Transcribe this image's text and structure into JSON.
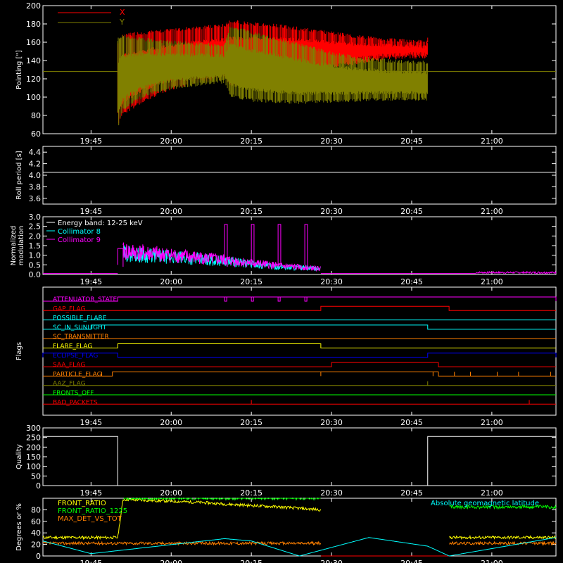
{
  "time_axis": {
    "ticks": [
      "19:45",
      "20:00",
      "20:15",
      "20:30",
      "20:45",
      "21:00"
    ]
  },
  "chart_data": [
    {
      "type": "line",
      "id": "pointing",
      "ylabel": "Pointing [\"]",
      "ylim": [
        60,
        200
      ],
      "yticks": [
        60,
        80,
        100,
        120,
        140,
        160,
        180,
        200
      ],
      "legend": [
        {
          "name": "X",
          "color": "#ff0000"
        },
        {
          "name": "Y",
          "color": "#808000"
        }
      ],
      "baseline": 128,
      "series": [
        {
          "name": "X",
          "color": "#ff0000",
          "envelope": {
            "t": [
              "19:50",
              "19:51",
              "19:55",
              "20:00",
              "20:05",
              "20:10",
              "20:11",
              "20:15",
              "20:20",
              "20:25",
              "20:30",
              "20:35",
              "20:40",
              "20:45",
              "20:48"
            ],
            "upper": [
              160,
              170,
              172,
              175,
              178,
              180,
              185,
              182,
              180,
              176,
              172,
              168,
              165,
              163,
              162
            ],
            "lower": [
              68,
              80,
              95,
              108,
              115,
              120,
              110,
              120,
              125,
              128,
              132,
              136,
              140,
              142,
              142
            ]
          }
        },
        {
          "name": "Y",
          "color": "#808000",
          "envelope": {
            "t": [
              "19:50",
              "19:51",
              "19:55",
              "20:00",
              "20:05",
              "20:10",
              "20:11",
              "20:15",
              "20:20",
              "20:25",
              "20:30",
              "20:35",
              "20:40",
              "20:45",
              "20:48"
            ],
            "upper": [
              165,
              168,
              165,
              162,
              160,
              158,
              180,
              172,
              165,
              158,
              150,
              145,
              142,
              140,
              140
            ],
            "lower": [
              65,
              85,
              100,
              108,
              112,
              115,
              100,
              95,
              93,
              92,
              94,
              95,
              96,
              96,
              96
            ]
          }
        }
      ]
    },
    {
      "type": "line",
      "id": "roll",
      "ylabel": "Roll period [s]",
      "ylim": [
        3.5,
        4.5
      ],
      "yticks": [
        "3.6",
        "3.8",
        "4.0",
        "4.2",
        "4.4"
      ],
      "series": [
        {
          "name": "",
          "color": "#ffffff",
          "value": 4.05
        }
      ]
    },
    {
      "type": "line",
      "id": "modulation",
      "ylabel": "Normalized modulation",
      "ylim": [
        0,
        3
      ],
      "yticks": [
        "0.0",
        "0.5",
        "1.0",
        "1.5",
        "2.0",
        "2.5",
        "3.0"
      ],
      "legend": [
        {
          "name": "Energy band: 12-25 keV",
          "color": "#ffffff"
        },
        {
          "name": "Collimator 8",
          "color": "#00ffff"
        },
        {
          "name": "Collimator 9",
          "color": "#ff00ff"
        }
      ],
      "series": [
        {
          "name": "Collimator 8",
          "color": "#00ffff",
          "trend": {
            "t": [
              "19:45",
              "19:50",
              "19:51",
              "20:00",
              "20:10",
              "20:20",
              "20:28"
            ],
            "v": [
              0.05,
              0.05,
              1.1,
              0.9,
              0.7,
              0.4,
              0.3
            ]
          }
        },
        {
          "name": "Collimator 9",
          "color": "#ff00ff",
          "trend": {
            "t": [
              "19:45",
              "19:50",
              "19:51",
              "20:00",
              "20:10",
              "20:20",
              "20:28"
            ],
            "v": [
              0.05,
              0.05,
              1.2,
              1.0,
              0.75,
              0.45,
              0.3
            ]
          },
          "spikes": [
            {
              "t0": "19:50",
              "t1": "19:51",
              "v": 1.35
            },
            {
              "t0": "20:10",
              "t1": "20:10:30",
              "v": 2.6
            },
            {
              "t0": "20:15",
              "t1": "20:15:30",
              "v": 2.6
            },
            {
              "t0": "20:20",
              "t1": "20:20:30",
              "v": 2.6
            },
            {
              "t0": "20:25",
              "t1": "20:25:30",
              "v": 2.6
            }
          ]
        }
      ],
      "late_segment": {
        "t0": "20:57",
        "t1": "21:12",
        "v": 0.1
      }
    },
    {
      "type": "table",
      "id": "flags",
      "ylabel": "Flags",
      "rows": [
        {
          "name": "ATTENUATOR_STATE",
          "color": "#ff00ff",
          "on": [
            [
              "19:50",
              "21:12"
            ]
          ],
          "dips": [
            "20:10",
            "20:15",
            "20:20",
            "20:25"
          ]
        },
        {
          "name": "GAP_FLAG",
          "color": "#ff0000",
          "on": [
            [
              "20:28",
              "20:52"
            ]
          ]
        },
        {
          "name": "POSSIBLE_FLARE",
          "color": "#00ffff",
          "on": []
        },
        {
          "name": "SC_IN_SUNLIGHT",
          "color": "#00ffff",
          "on": [
            [
              "19:45",
              "20:48"
            ]
          ]
        },
        {
          "name": "SC_TRANSMITTER",
          "color": "#ff8000",
          "on": []
        },
        {
          "name": "FLARE_FLAG",
          "color": "#ffff00",
          "on": [
            [
              "19:50",
              "20:28"
            ]
          ]
        },
        {
          "name": "ECLIPSE_FLAG",
          "color": "#0000ff",
          "on": [
            [
              "19:36",
              "19:50"
            ],
            [
              "20:48",
              "21:12"
            ]
          ]
        },
        {
          "name": "SAA_FLAG",
          "color": "#ff0000",
          "on": [
            [
              "20:30",
              "20:50"
            ]
          ]
        },
        {
          "name": "PARTICLE_FLAG",
          "color": "#ff8000",
          "on": [
            [
              "19:49",
              "20:50"
            ]
          ],
          "blips": [
            "19:47",
            "20:28",
            "20:49",
            "20:53",
            "20:56",
            "21:01",
            "21:05",
            "21:11"
          ]
        },
        {
          "name": "AAZ_FLAG",
          "color": "#808000",
          "on": [],
          "blips": [
            "20:48"
          ]
        },
        {
          "name": "FRONTS_OFF",
          "color": "#00ff00",
          "on": []
        },
        {
          "name": "BAD_PACKETS",
          "color": "#ff0000",
          "on": [],
          "blips": [
            "20:15",
            "21:07"
          ]
        }
      ]
    },
    {
      "type": "line",
      "id": "quality",
      "ylabel": "Quality",
      "ylim": [
        0,
        300
      ],
      "yticks": [
        "0",
        "50",
        "100",
        "150",
        "200",
        "250",
        "300"
      ],
      "series": [
        {
          "name": "",
          "color": "#ffffff",
          "segments": [
            {
              "t0": "19:36",
              "t1": "19:50",
              "v": 255
            },
            {
              "t0": "19:50",
              "t1": "20:48",
              "v": 0
            },
            {
              "t0": "20:48",
              "t1": "21:12",
              "v": 255
            }
          ]
        }
      ]
    },
    {
      "type": "line",
      "id": "ratios",
      "ylabel": "Degrees or %",
      "ylim": [
        0,
        100
      ],
      "yticks": [
        "0",
        "20",
        "40",
        "60",
        "80"
      ],
      "legend": [
        {
          "name": "FRONT_RATIO",
          "color": "#ffff00"
        },
        {
          "name": "FRONT_RATIO_1225",
          "color": "#00ff00"
        },
        {
          "name": "MAX_DET_VS_TOT",
          "color": "#ff8000"
        },
        {
          "name": "Absolute geomagnetic latitude",
          "color": "#00ffff"
        }
      ],
      "series": [
        {
          "name": "FRONT_RATIO",
          "color": "#ffff00",
          "trend": {
            "t": [
              "19:36",
              "19:50",
              "19:51",
              "20:05",
              "20:10",
              "20:20",
              "20:28",
              "20:29",
              "20:52",
              "21:12"
            ],
            "v": [
              32,
              32,
              98,
              93,
              90,
              85,
              80,
              null,
              32,
              32
            ]
          }
        },
        {
          "name": "FRONT_RATIO_1225",
          "color": "#00ff00",
          "trend": {
            "t": [
              "19:36",
              "19:50",
              "19:51",
              "20:28",
              "20:29",
              "20:52",
              "21:12"
            ],
            "v": [
              null,
              null,
              100,
              100,
              null,
              85,
              85
            ]
          }
        },
        {
          "name": "MAX_DET_VS_TOT",
          "color": "#ff8000",
          "trend": {
            "t": [
              "19:36",
              "20:28",
              "20:29",
              "20:52",
              "21:12"
            ],
            "v": [
              22,
              22,
              null,
              22,
              22
            ]
          }
        },
        {
          "name": "Absolute geomagnetic latitude",
          "color": "#00ffff",
          "trend": {
            "t": [
              "19:36",
              "19:45",
              "20:10",
              "20:15",
              "20:24",
              "20:37",
              "20:48",
              "20:52",
              "21:12"
            ],
            "v": [
              26,
              4,
              30,
              26,
              0,
              32,
              17,
              0,
              32
            ]
          }
        }
      ]
    }
  ]
}
